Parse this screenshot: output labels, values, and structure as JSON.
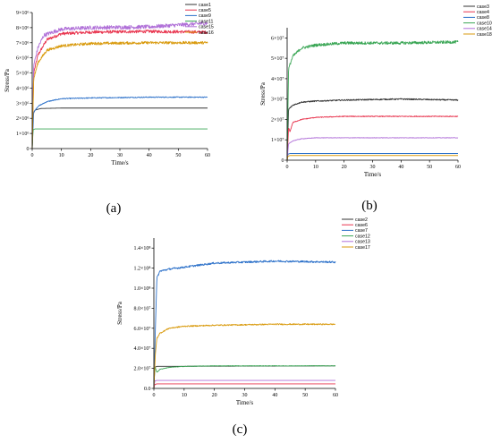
{
  "chart_data": [
    {
      "type": "line",
      "panel_label": "(a)",
      "xlabel": "Time/s",
      "ylabel": "Stress/Pa",
      "xlim": [
        0,
        60
      ],
      "ylim": [
        0,
        9000000
      ],
      "x_ticks": [
        0,
        10,
        20,
        30,
        40,
        50,
        60
      ],
      "x_tick_labels": [
        "0",
        "10",
        "20",
        "30",
        "40",
        "50",
        "60"
      ],
      "y_ticks": [
        0,
        1000000,
        2000000,
        3000000,
        4000000,
        5000000,
        6000000,
        7000000,
        8000000,
        9000000
      ],
      "y_tick_labels": [
        "0",
        "1×10⁶",
        "2×10⁶",
        "3×10⁶",
        "4×10⁶",
        "5×10⁶",
        "6×10⁶",
        "7×10⁶",
        "8×10⁶",
        "9×10⁶"
      ],
      "legend_position": "top-right",
      "series": [
        {
          "name": "case1",
          "color": "#333333",
          "x": [
            0,
            0.3,
            1,
            3,
            10,
            60
          ],
          "values": [
            0,
            2300000,
            2550000,
            2650000,
            2680000,
            2680000
          ],
          "noise": 0
        },
        {
          "name": "case5",
          "color": "#e8344e",
          "x": [
            0,
            0.5,
            2,
            5,
            10,
            20,
            40,
            60
          ],
          "values": [
            0,
            5000000,
            6200000,
            7200000,
            7600000,
            7700000,
            7750000,
            7700000
          ],
          "noise": 100000
        },
        {
          "name": "case9",
          "color": "#2b70c9",
          "x": [
            0,
            0.5,
            2,
            5,
            10,
            20,
            40,
            60
          ],
          "values": [
            0,
            2400000,
            2800000,
            3100000,
            3300000,
            3350000,
            3400000,
            3400000
          ],
          "noise": 30000
        },
        {
          "name": "case11",
          "color": "#3aa655",
          "x": [
            0,
            0.3,
            1,
            60
          ],
          "values": [
            0,
            1250000,
            1300000,
            1300000
          ],
          "noise": 0
        },
        {
          "name": "case15",
          "color": "#b070d8",
          "x": [
            0,
            0.5,
            2,
            4,
            10,
            20,
            40,
            60
          ],
          "values": [
            0,
            5500000,
            6700000,
            7500000,
            7900000,
            8000000,
            8050000,
            8300000
          ],
          "noise": 130000
        },
        {
          "name": "case16",
          "color": "#d99a0d",
          "x": [
            0,
            0.5,
            2,
            5,
            10,
            20,
            40,
            60
          ],
          "values": [
            0,
            4600000,
            5700000,
            6500000,
            6800000,
            6950000,
            7000000,
            7000000
          ],
          "noise": 90000
        }
      ]
    },
    {
      "type": "line",
      "panel_label": "(b)",
      "xlabel": "Time/s",
      "ylabel": "Stress/Pa",
      "xlim": [
        0,
        60
      ],
      "ylim": [
        0,
        65000000
      ],
      "x_ticks": [
        0,
        10,
        20,
        30,
        40,
        50,
        60
      ],
      "x_tick_labels": [
        "0",
        "10",
        "20",
        "30",
        "40",
        "50",
        "60"
      ],
      "y_ticks": [
        0,
        10000000,
        20000000,
        30000000,
        40000000,
        50000000,
        60000000
      ],
      "y_tick_labels": [
        "0",
        "1×10⁷",
        "2×10⁷",
        "3×10⁷",
        "4×10⁷",
        "5×10⁷",
        "6×10⁷"
      ],
      "legend_position": "top-right",
      "series": [
        {
          "name": "case3",
          "color": "#333333",
          "x": [
            0,
            0.5,
            2,
            5,
            10,
            20,
            40,
            60
          ],
          "values": [
            0,
            25000000,
            27000000,
            28500000,
            29000000,
            29500000,
            30000000,
            29500000
          ],
          "noise": 300000
        },
        {
          "name": "case4",
          "color": "#e8344e",
          "x": [
            0,
            0.5,
            1,
            2,
            5,
            10,
            20,
            40,
            60
          ],
          "values": [
            0,
            16000000,
            14000000,
            18500000,
            20000000,
            21000000,
            21500000,
            21500000,
            21500000
          ],
          "noise": 200000
        },
        {
          "name": "case8",
          "color": "#2b70c9",
          "x": [
            0,
            0.3,
            1,
            60
          ],
          "values": [
            0,
            3000000,
            3300000,
            3300000
          ],
          "noise": 0
        },
        {
          "name": "case10",
          "color": "#3aa655",
          "x": [
            0,
            0.5,
            2,
            5,
            10,
            20,
            40,
            60
          ],
          "values": [
            0,
            45000000,
            51000000,
            55000000,
            56500000,
            57500000,
            57500000,
            58000000
          ],
          "noise": 700000
        },
        {
          "name": "case14",
          "color": "#b070d8",
          "x": [
            0,
            0.5,
            2,
            5,
            10,
            20,
            40,
            60
          ],
          "values": [
            0,
            8000000,
            9500000,
            10500000,
            11000000,
            11000000,
            11000000,
            11000000
          ],
          "noise": 120000
        },
        {
          "name": "case18",
          "color": "#d99a0d",
          "x": [
            0,
            0.3,
            1,
            60
          ],
          "values": [
            0,
            2000000,
            2300000,
            2300000
          ],
          "noise": 0
        }
      ]
    },
    {
      "type": "line",
      "panel_label": "(c)",
      "xlabel": "Time/s",
      "ylabel": "Stress/Pa",
      "xlim": [
        0,
        60
      ],
      "ylim": [
        0,
        150000000
      ],
      "x_ticks": [
        0,
        10,
        20,
        30,
        40,
        50,
        60
      ],
      "x_tick_labels": [
        "0",
        "10",
        "20",
        "30",
        "40",
        "50",
        "60"
      ],
      "y_ticks": [
        0,
        20000000,
        40000000,
        60000000,
        80000000,
        100000000,
        120000000,
        140000000
      ],
      "y_tick_labels": [
        "0.0",
        "2.0×10⁷",
        "4.0×10⁷",
        "6.0×10⁷",
        "8.0×10⁷",
        "1.0×10⁸",
        "1.2×10⁸",
        "1.4×10⁸"
      ],
      "legend_position": "top-right",
      "series": [
        {
          "name": "case2",
          "color": "#333333",
          "x": [
            0,
            0.3,
            1,
            60
          ],
          "values": [
            0,
            21000000,
            22000000,
            22500000
          ],
          "noise": 0
        },
        {
          "name": "case6",
          "color": "#e8344e",
          "x": [
            0,
            0.3,
            1,
            60
          ],
          "values": [
            0,
            4000000,
            4500000,
            4500000
          ],
          "noise": 0
        },
        {
          "name": "case7",
          "color": "#2b70c9",
          "x": [
            0,
            0.5,
            1,
            2,
            5,
            10,
            20,
            40,
            60
          ],
          "values": [
            0,
            60000000,
            110000000,
            117000000,
            119000000,
            121000000,
            125000000,
            127000000,
            126000000
          ],
          "noise": 900000
        },
        {
          "name": "case12",
          "color": "#3aa655",
          "x": [
            0,
            0.3,
            1,
            2,
            5,
            10,
            20,
            40,
            60
          ],
          "values": [
            0,
            22000000,
            16000000,
            19000000,
            21000000,
            22000000,
            22500000,
            22500000,
            22500000
          ],
          "noise": 250000
        },
        {
          "name": "case13",
          "color": "#b070d8",
          "x": [
            0,
            0.3,
            1,
            60
          ],
          "values": [
            0,
            7500000,
            8000000,
            8000000
          ],
          "noise": 0
        },
        {
          "name": "case17",
          "color": "#d99a0d",
          "x": [
            0,
            0.5,
            1,
            2,
            5,
            10,
            20,
            40,
            60
          ],
          "values": [
            0,
            35000000,
            50000000,
            55000000,
            60000000,
            62000000,
            63000000,
            64000000,
            64000000
          ],
          "noise": 600000
        }
      ]
    }
  ]
}
